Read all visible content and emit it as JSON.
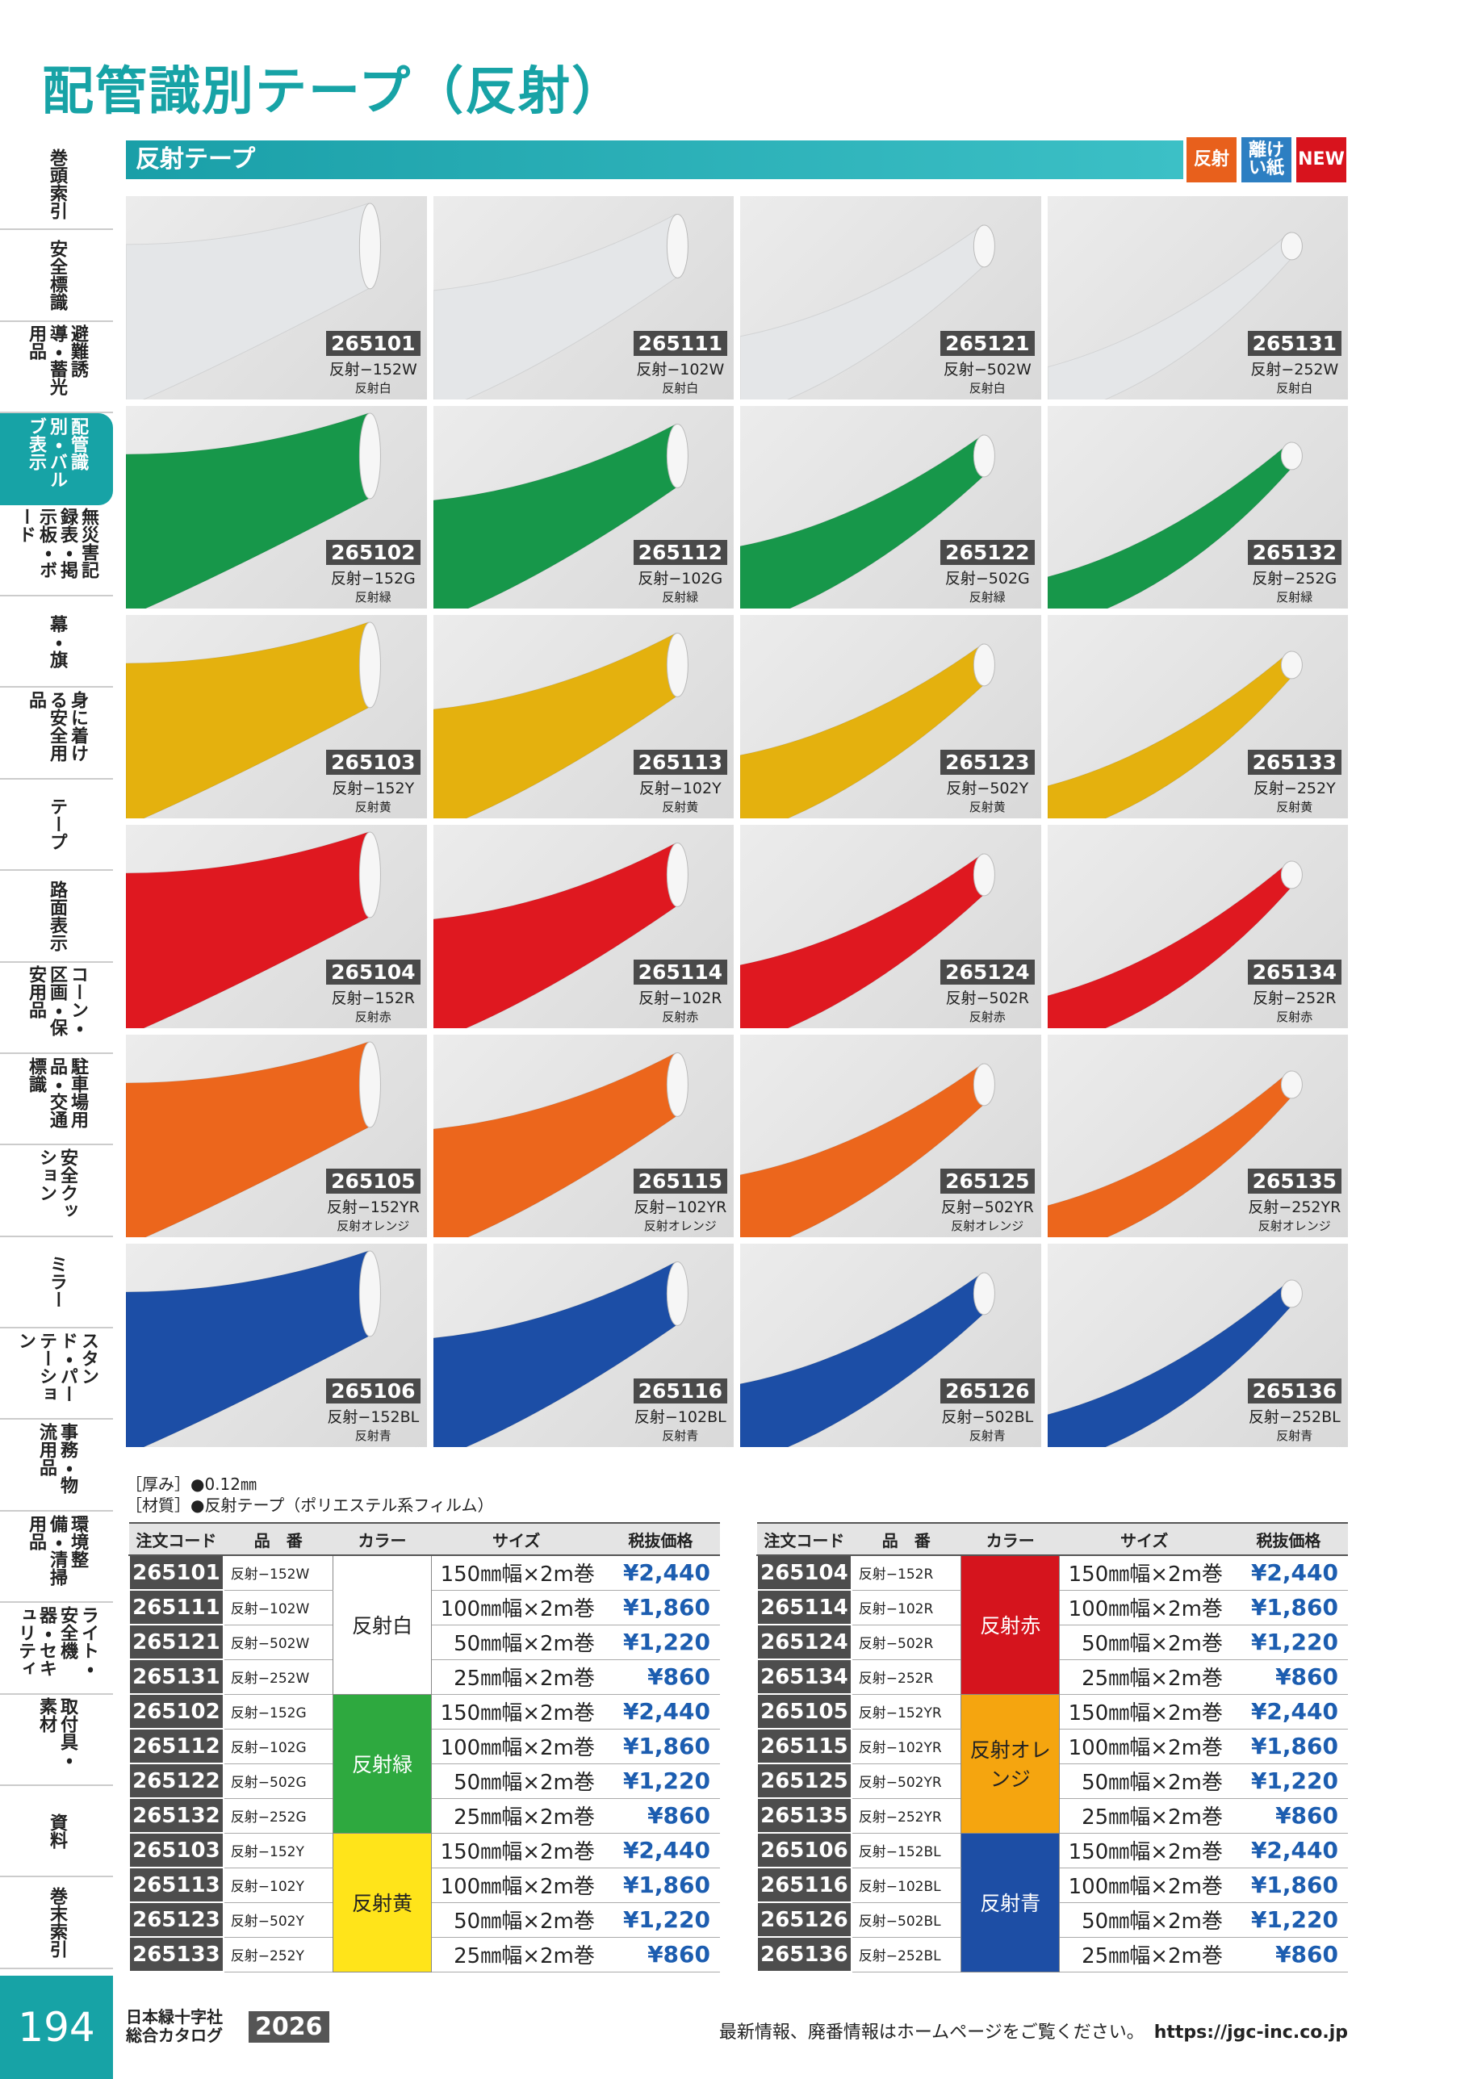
{
  "header": {
    "title": "配管識別テープ（反射）"
  },
  "sidebar": {
    "tabs": [
      "巻頭索引",
      "安全標識",
      "避難誘導・蓄光用品",
      "配管識別・バルブ表示",
      "無災害記録表・掲示板・ボード",
      "幕・旗",
      "身に着ける安全用品",
      "テープ",
      "路面表示",
      "コーン・区画・保安用品",
      "駐車場用品・交通標識",
      "安全クッション",
      "ミラー",
      "スタンド・パーテーション",
      "事務・物流用品",
      "環境整備・清掃用品",
      "ライト・安全機器・セキュリティ",
      "取付具・素材",
      "資料",
      "巻末索引"
    ],
    "active": 3
  },
  "section": {
    "title": "反射テープ",
    "badges": [
      "反射",
      "離けい紙",
      "NEW"
    ]
  },
  "products": [
    {
      "color": "#e4e6e8",
      "items": [
        {
          "code": "265101",
          "model": "反射−152W",
          "color_name": "反射白"
        },
        {
          "code": "265111",
          "model": "反射−102W",
          "color_name": "反射白"
        },
        {
          "code": "265121",
          "model": "反射−502W",
          "color_name": "反射白"
        },
        {
          "code": "265131",
          "model": "反射−252W",
          "color_name": "反射白"
        }
      ]
    },
    {
      "color": "#17974a",
      "items": [
        {
          "code": "265102",
          "model": "反射−152G",
          "color_name": "反射緑"
        },
        {
          "code": "265112",
          "model": "反射−102G",
          "color_name": "反射緑"
        },
        {
          "code": "265122",
          "model": "反射−502G",
          "color_name": "反射緑"
        },
        {
          "code": "265132",
          "model": "反射−252G",
          "color_name": "反射緑"
        }
      ]
    },
    {
      "color": "#e4b10e",
      "items": [
        {
          "code": "265103",
          "model": "反射−152Y",
          "color_name": "反射黄"
        },
        {
          "code": "265113",
          "model": "反射−102Y",
          "color_name": "反射黄"
        },
        {
          "code": "265123",
          "model": "反射−502Y",
          "color_name": "反射黄"
        },
        {
          "code": "265133",
          "model": "反射−252Y",
          "color_name": "反射黄"
        }
      ]
    },
    {
      "color": "#df1820",
      "items": [
        {
          "code": "265104",
          "model": "反射−152R",
          "color_name": "反射赤"
        },
        {
          "code": "265114",
          "model": "反射−102R",
          "color_name": "反射赤"
        },
        {
          "code": "265124",
          "model": "反射−502R",
          "color_name": "反射赤"
        },
        {
          "code": "265134",
          "model": "反射−252R",
          "color_name": "反射赤"
        }
      ]
    },
    {
      "color": "#ec661c",
      "items": [
        {
          "code": "265105",
          "model": "反射−152YR",
          "color_name": "反射オレンジ"
        },
        {
          "code": "265115",
          "model": "反射−102YR",
          "color_name": "反射オレンジ"
        },
        {
          "code": "265125",
          "model": "反射−502YR",
          "color_name": "反射オレンジ"
        },
        {
          "code": "265135",
          "model": "反射−252YR",
          "color_name": "反射オレンジ"
        }
      ]
    },
    {
      "color": "#1c4ea6",
      "items": [
        {
          "code": "265106",
          "model": "反射−152BL",
          "color_name": "反射青"
        },
        {
          "code": "265116",
          "model": "反射−102BL",
          "color_name": "反射青"
        },
        {
          "code": "265126",
          "model": "反射−502BL",
          "color_name": "反射青"
        },
        {
          "code": "265136",
          "model": "反射−252BL",
          "color_name": "反射青"
        }
      ]
    }
  ],
  "specs": [
    "［厚み］●0.12㎜",
    "［材質］●反射テープ（ポリエステル系フィルム）"
  ],
  "table": {
    "headers": [
      "注文コード",
      "品　番",
      "カラー",
      "サイズ",
      "税抜価格"
    ],
    "left": [
      {
        "color_label": "反射白",
        "color": "#ffffff",
        "text_color": "#222222",
        "rows": [
          [
            "265101",
            "反射−152W",
            "150㎜幅×2m巻",
            "¥2,440"
          ],
          [
            "265111",
            "反射−102W",
            "100㎜幅×2m巻",
            "¥1,860"
          ],
          [
            "265121",
            "反射−502W",
            "50㎜幅×2m巻",
            "¥1,220"
          ],
          [
            "265131",
            "反射−252W",
            "25㎜幅×2m巻",
            "¥860"
          ]
        ]
      },
      {
        "color_label": "反射緑",
        "color": "#2ea93f",
        "text_color": "#ffffff",
        "rows": [
          [
            "265102",
            "反射−152G",
            "150㎜幅×2m巻",
            "¥2,440"
          ],
          [
            "265112",
            "反射−102G",
            "100㎜幅×2m巻",
            "¥1,860"
          ],
          [
            "265122",
            "反射−502G",
            "50㎜幅×2m巻",
            "¥1,220"
          ],
          [
            "265132",
            "反射−252G",
            "25㎜幅×2m巻",
            "¥860"
          ]
        ]
      },
      {
        "color_label": "反射黄",
        "color": "#ffe41a",
        "text_color": "#222222",
        "rows": [
          [
            "265103",
            "反射−152Y",
            "150㎜幅×2m巻",
            "¥2,440"
          ],
          [
            "265113",
            "反射−102Y",
            "100㎜幅×2m巻",
            "¥1,860"
          ],
          [
            "265123",
            "反射−502Y",
            "50㎜幅×2m巻",
            "¥1,220"
          ],
          [
            "265133",
            "反射−252Y",
            "25㎜幅×2m巻",
            "¥860"
          ]
        ]
      }
    ],
    "right": [
      {
        "color_label": "反射赤",
        "color": "#d5141d",
        "text_color": "#ffffff",
        "rows": [
          [
            "265104",
            "反射−152R",
            "150㎜幅×2m巻",
            "¥2,440"
          ],
          [
            "265114",
            "反射−102R",
            "100㎜幅×2m巻",
            "¥1,860"
          ],
          [
            "265124",
            "反射−502R",
            "50㎜幅×2m巻",
            "¥1,220"
          ],
          [
            "265134",
            "反射−252R",
            "25㎜幅×2m巻",
            "¥860"
          ]
        ]
      },
      {
        "color_label": "反射オレンジ",
        "color": "#f5a50f",
        "text_color": "#222222",
        "rows": [
          [
            "265105",
            "反射−152YR",
            "150㎜幅×2m巻",
            "¥2,440"
          ],
          [
            "265115",
            "反射−102YR",
            "100㎜幅×2m巻",
            "¥1,860"
          ],
          [
            "265125",
            "反射−502YR",
            "50㎜幅×2m巻",
            "¥1,220"
          ],
          [
            "265135",
            "反射−252YR",
            "25㎜幅×2m巻",
            "¥860"
          ]
        ]
      },
      {
        "color_label": "反射青",
        "color": "#1d4ea5",
        "text_color": "#ffffff",
        "rows": [
          [
            "265106",
            "反射−152BL",
            "150㎜幅×2m巻",
            "¥2,440"
          ],
          [
            "265116",
            "反射−102BL",
            "100㎜幅×2m巻",
            "¥1,860"
          ],
          [
            "265126",
            "反射−502BL",
            "50㎜幅×2m巻",
            "¥1,220"
          ],
          [
            "265136",
            "反射−252BL",
            "25㎜幅×2m巻",
            "¥860"
          ]
        ]
      }
    ]
  },
  "footer": {
    "page": "194",
    "publisher": "日本緑十字社",
    "catalog": "総合カタログ",
    "year": "2026",
    "notice": "最新情報、廃番情報はホームページをご覧ください。",
    "url": "https://jgc-inc.co.jp"
  }
}
